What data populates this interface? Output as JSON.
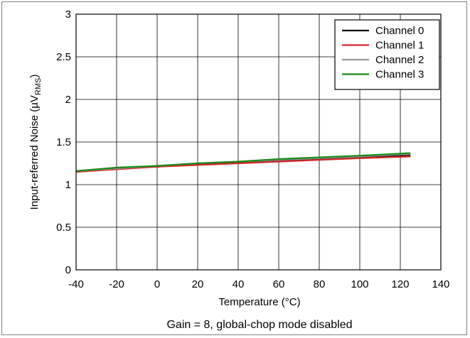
{
  "chart_data": {
    "type": "line",
    "xlabel": "Temperature (°C)",
    "ylabel": "Input-referred Noise (µV",
    "ylabel_sub": "RMS",
    "ylabel_end": ")",
    "caption": "Gain = 8, global-chop mode disabled",
    "xlim": [
      -40,
      140
    ],
    "ylim": [
      0,
      3
    ],
    "xticks": [
      -40,
      -20,
      0,
      20,
      40,
      60,
      80,
      100,
      120,
      140
    ],
    "yticks": [
      0,
      0.5,
      1,
      1.5,
      2,
      2.5,
      3
    ],
    "xtick_labels": [
      "-40",
      "-20",
      "0",
      "20",
      "40",
      "60",
      "80",
      "100",
      "120",
      "140"
    ],
    "ytick_labels": [
      "0",
      "0.5",
      "1",
      "1.5",
      "2",
      "2.5",
      "3"
    ],
    "grid": true,
    "legend_position": "top-right",
    "series": [
      {
        "name": "Channel 0",
        "color": "#000000",
        "x": [
          -40,
          -20,
          0,
          20,
          40,
          60,
          80,
          100,
          125
        ],
        "y": [
          1.15,
          1.19,
          1.21,
          1.24,
          1.26,
          1.28,
          1.3,
          1.32,
          1.34
        ]
      },
      {
        "name": "Channel 1",
        "color": "#d62728",
        "x": [
          -40,
          -20,
          0,
          20,
          40,
          60,
          80,
          100,
          125
        ],
        "y": [
          1.15,
          1.18,
          1.21,
          1.23,
          1.25,
          1.27,
          1.29,
          1.31,
          1.33
        ]
      },
      {
        "name": "Channel 2",
        "color": "#999999",
        "x": [
          -40,
          -20,
          0,
          20,
          40,
          60,
          80,
          100,
          125
        ],
        "y": [
          1.16,
          1.19,
          1.22,
          1.25,
          1.27,
          1.29,
          1.31,
          1.33,
          1.36
        ]
      },
      {
        "name": "Channel 3",
        "color": "#1a8a1a",
        "x": [
          -40,
          -20,
          0,
          20,
          40,
          60,
          80,
          100,
          125
        ],
        "y": [
          1.16,
          1.2,
          1.22,
          1.25,
          1.27,
          1.3,
          1.32,
          1.34,
          1.37
        ]
      }
    ]
  }
}
